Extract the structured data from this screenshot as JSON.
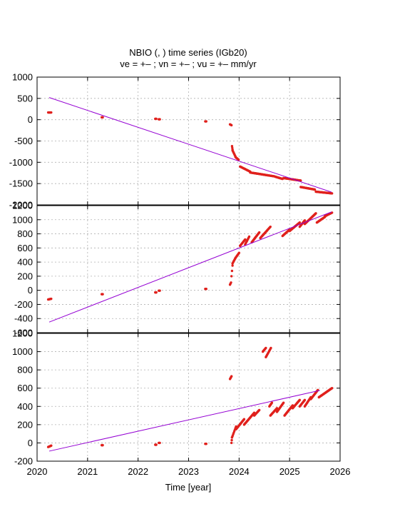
{
  "title_line1": "NBIO (, ) time series (IGb20)",
  "title_line2": "ve =  +– ; vn =  +– ; vu =  +–  mm/yr",
  "xlabel": "Time [year]",
  "colors": {
    "points": "#e0201c",
    "trend": "#9400d3",
    "grid": "#b0b0b0"
  },
  "chart_data": [
    {
      "type": "scatter",
      "xlim": [
        2020,
        2026
      ],
      "ylim": [
        -2000,
        1000
      ],
      "yticks": [
        "1000",
        "500",
        "0",
        "-500",
        "-1000",
        "-1500",
        "-2000"
      ],
      "ytick_values": [
        1000,
        500,
        0,
        -500,
        -1000,
        -1500,
        -2000
      ],
      "xticks": [
        "2020",
        "2021",
        "2022",
        "2023",
        "2024",
        "2025",
        "2026"
      ],
      "grid": true,
      "trend": [
        [
          2020.24,
          520
        ],
        [
          2025.83,
          -1700
        ]
      ],
      "segments": [
        [
          2020.22,
          2020.28,
          170,
          170
        ],
        [
          2021.28,
          2021.3,
          55,
          55
        ],
        [
          2022.34,
          2022.36,
          20,
          20
        ],
        [
          2022.41,
          2022.43,
          10,
          10
        ],
        [
          2023.33,
          2023.35,
          -40,
          -40
        ],
        [
          2023.82,
          2023.85,
          -110,
          -130
        ],
        [
          2023.86,
          2023.87,
          -620,
          -700
        ],
        [
          2023.87,
          2023.93,
          -720,
          -870
        ],
        [
          2023.93,
          2023.99,
          -880,
          -940
        ],
        [
          2024.02,
          2024.22,
          -1100,
          -1220
        ],
        [
          2024.22,
          2024.7,
          -1240,
          -1330
        ],
        [
          2024.72,
          2024.86,
          -1340,
          -1390
        ],
        [
          2024.88,
          2025.22,
          -1370,
          -1430
        ],
        [
          2025.22,
          2025.5,
          -1580,
          -1640
        ],
        [
          2025.52,
          2025.84,
          -1690,
          -1730
        ]
      ]
    },
    {
      "type": "scatter",
      "xlim": [
        2020,
        2026
      ],
      "ylim": [
        -600,
        1200
      ],
      "yticks": [
        "1200",
        "1000",
        "800",
        "600",
        "400",
        "200",
        "0",
        "-200",
        "-400",
        "-600"
      ],
      "ytick_values": [
        1200,
        1000,
        800,
        600,
        400,
        200,
        0,
        -200,
        -400,
        -600
      ],
      "xticks": [
        "2020",
        "2021",
        "2022",
        "2023",
        "2024",
        "2025",
        "2026"
      ],
      "grid": true,
      "trend": [
        [
          2020.24,
          -450
        ],
        [
          2025.83,
          1110
        ]
      ],
      "segments": [
        [
          2020.22,
          2020.28,
          -130,
          -120
        ],
        [
          2021.28,
          2021.3,
          -55,
          -55
        ],
        [
          2022.34,
          2022.36,
          -30,
          -30
        ],
        [
          2022.41,
          2022.43,
          -5,
          -5
        ],
        [
          2023.33,
          2023.35,
          20,
          20
        ],
        [
          2023.82,
          2023.84,
          80,
          110
        ],
        [
          2023.85,
          2023.87,
          200,
          350
        ],
        [
          2023.87,
          2023.93,
          380,
          460
        ],
        [
          2023.93,
          2024.0,
          460,
          530
        ],
        [
          2024.02,
          2024.12,
          630,
          720
        ],
        [
          2024.12,
          2024.2,
          650,
          760
        ],
        [
          2024.25,
          2024.4,
          680,
          820
        ],
        [
          2024.42,
          2024.62,
          740,
          900
        ],
        [
          2024.86,
          2025.0,
          770,
          860
        ],
        [
          2025.0,
          2025.2,
          840,
          960
        ],
        [
          2025.2,
          2025.3,
          900,
          990
        ],
        [
          2025.3,
          2025.52,
          940,
          1090
        ],
        [
          2025.54,
          2025.7,
          960,
          1040
        ],
        [
          2025.7,
          2025.84,
          1050,
          1100
        ]
      ]
    },
    {
      "type": "scatter",
      "xlim": [
        2020,
        2026
      ],
      "ylim": [
        -200,
        1200
      ],
      "yticks": [
        "1200",
        "1000",
        "800",
        "600",
        "400",
        "200",
        "0",
        "-200"
      ],
      "ytick_values": [
        1200,
        1000,
        800,
        600,
        400,
        200,
        0,
        -200
      ],
      "xticks": [
        "2020",
        "2021",
        "2022",
        "2023",
        "2024",
        "2025",
        "2026"
      ],
      "grid": true,
      "trend": [
        [
          2020.24,
          -90
        ],
        [
          2025.6,
          575
        ]
      ],
      "segments": [
        [
          2020.22,
          2020.28,
          -45,
          -30
        ],
        [
          2021.28,
          2021.3,
          -25,
          -25
        ],
        [
          2022.34,
          2022.36,
          -20,
          -20
        ],
        [
          2022.41,
          2022.43,
          0,
          0
        ],
        [
          2023.33,
          2023.35,
          -10,
          -10
        ],
        [
          2023.82,
          2023.85,
          700,
          730
        ],
        [
          2023.85,
          2023.86,
          0,
          60
        ],
        [
          2023.86,
          2023.94,
          60,
          180
        ],
        [
          2023.94,
          2024.1,
          150,
          260
        ],
        [
          2024.1,
          2024.3,
          200,
          330
        ],
        [
          2024.3,
          2024.4,
          300,
          360
        ],
        [
          2024.47,
          2024.53,
          1000,
          1040
        ],
        [
          2024.53,
          2024.63,
          940,
          1040
        ],
        [
          2024.6,
          2024.65,
          400,
          440
        ],
        [
          2024.62,
          2024.75,
          300,
          380
        ],
        [
          2024.75,
          2024.88,
          340,
          440
        ],
        [
          2024.9,
          2025.06,
          300,
          410
        ],
        [
          2025.06,
          2025.2,
          380,
          470
        ],
        [
          2025.2,
          2025.3,
          400,
          470
        ],
        [
          2025.3,
          2025.42,
          400,
          500
        ],
        [
          2025.42,
          2025.56,
          480,
          580
        ],
        [
          2025.58,
          2025.84,
          500,
          600
        ]
      ]
    }
  ]
}
